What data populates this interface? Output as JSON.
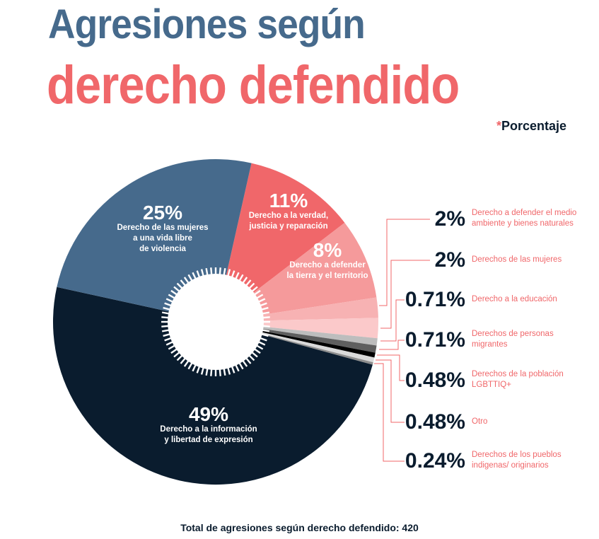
{
  "header": {
    "title_line1": "Agresiones según",
    "title_line2": "derecho defendido",
    "note_asterisk": "*",
    "note_text": "Porcentaje"
  },
  "footer": {
    "total_label": "Total de agresiones según derecho defendido: 420"
  },
  "colors": {
    "title_blue": "#466A8C",
    "accent_red": "#F0676A",
    "navy": "#0A1C2E"
  },
  "chart_data": {
    "type": "pie",
    "variant": "donut",
    "title": "Agresiones según derecho defendido",
    "unit": "Porcentaje",
    "total": 420,
    "slices": [
      {
        "label": "Derecho a la verdad, justicia y reparación",
        "label_lines": [
          "Derecho a la verdad,",
          "justicia y reparación"
        ],
        "value": 11,
        "display": "11%",
        "color": "#F0676A",
        "placement": "inside"
      },
      {
        "label": "Derecho a defender la tierra y el territorio",
        "label_lines": [
          "Derecho a defender",
          "la tierra y el territorio"
        ],
        "value": 8,
        "display": "8%",
        "color": "#F59A9B",
        "placement": "inside"
      },
      {
        "label": "Derecho a defender el medio ambiente y bienes naturales",
        "label_lines": [
          "Derecho a defender el medio",
          "ambiente y bienes naturales"
        ],
        "value": 2,
        "display": "2%",
        "color": "#F7B2B3",
        "placement": "outside"
      },
      {
        "label": "Derechos de las mujeres",
        "label_lines": [
          "Derechos de las mujeres"
        ],
        "value": 2,
        "display": "2%",
        "color": "#FBC9CA",
        "placement": "outside"
      },
      {
        "label": "Derecho a la educación",
        "label_lines": [
          "Derecho a la educación"
        ],
        "value": 0.71,
        "display": "0.71%",
        "color": "#BDBDBD",
        "placement": "outside"
      },
      {
        "label": "Derechos de personas migrantes",
        "label_lines": [
          "Derechos de personas",
          "migrantes"
        ],
        "value": 0.71,
        "display": "0.71%",
        "color": "#5F5F5F",
        "placement": "outside"
      },
      {
        "label": "Derechos de la población LGBTTIQ+",
        "label_lines": [
          "Derechos de la población",
          "LGBTTIQ+"
        ],
        "value": 0.48,
        "display": "0.48%",
        "color": "#000000",
        "placement": "outside"
      },
      {
        "label": "Otro",
        "label_lines": [
          "Otro"
        ],
        "value": 0.48,
        "display": "0.48%",
        "color": "#DADADA",
        "placement": "outside"
      },
      {
        "label": "Derechos de los pueblos indígenas/ originarios",
        "label_lines": [
          "Derechos de los pueblos",
          "indigenas/ originarios"
        ],
        "value": 0.24,
        "display": "0.24%",
        "color": "#8E8E8E",
        "placement": "outside"
      },
      {
        "label": "Derecho a la información y libertad de expresión",
        "label_lines": [
          "Derecho a la información",
          "y libertad de expresión"
        ],
        "value": 49,
        "display": "49%",
        "color": "#0A1C2E",
        "placement": "inside"
      },
      {
        "label": "Derecho de las mujeres a una vida libre de violencia",
        "label_lines": [
          "Derecho de las mujeres",
          "a una vida libre",
          "de violencia"
        ],
        "value": 25,
        "display": "25%",
        "color": "#466A8C",
        "placement": "inside"
      }
    ],
    "legend": "none"
  }
}
